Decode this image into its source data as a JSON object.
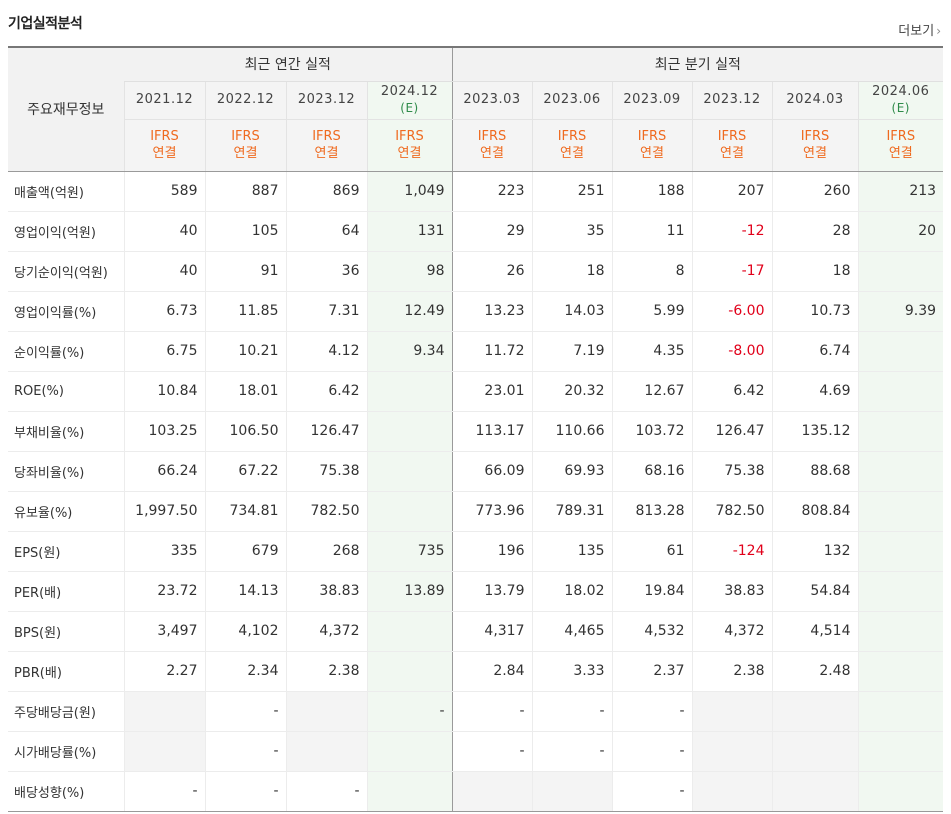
{
  "title": "기업실적분석",
  "more_link": "더보기",
  "header": {
    "corner": "주요재무정보",
    "annual_group": "최근 연간 실적",
    "quarter_group": "최근 분기 실적",
    "periods": [
      {
        "date": "2021.12",
        "est": ""
      },
      {
        "date": "2022.12",
        "est": ""
      },
      {
        "date": "2023.12",
        "est": ""
      },
      {
        "date": "2024.12",
        "est": "(E)"
      },
      {
        "date": "2023.03",
        "est": ""
      },
      {
        "date": "2023.06",
        "est": ""
      },
      {
        "date": "2023.09",
        "est": ""
      },
      {
        "date": "2023.12",
        "est": ""
      },
      {
        "date": "2024.03",
        "est": ""
      },
      {
        "date": "2024.06",
        "est": "(E)"
      }
    ],
    "ifrs_line1": "IFRS",
    "ifrs_line2": "연결"
  },
  "rows": [
    {
      "label": "매출액(억원)",
      "values": [
        "589",
        "887",
        "869",
        "1,049",
        "223",
        "251",
        "188",
        "207",
        "260",
        "213"
      ]
    },
    {
      "label": "영업이익(억원)",
      "values": [
        "40",
        "105",
        "64",
        "131",
        "29",
        "35",
        "11",
        "-12",
        "28",
        "20"
      ]
    },
    {
      "label": "당기순이익(억원)",
      "values": [
        "40",
        "91",
        "36",
        "98",
        "26",
        "18",
        "8",
        "-17",
        "18",
        ""
      ]
    },
    {
      "label": "영업이익률(%)",
      "values": [
        "6.73",
        "11.85",
        "7.31",
        "12.49",
        "13.23",
        "14.03",
        "5.99",
        "-6.00",
        "10.73",
        "9.39"
      ]
    },
    {
      "label": "순이익률(%)",
      "values": [
        "6.75",
        "10.21",
        "4.12",
        "9.34",
        "11.72",
        "7.19",
        "4.35",
        "-8.00",
        "6.74",
        ""
      ]
    },
    {
      "label": "ROE(%)",
      "values": [
        "10.84",
        "18.01",
        "6.42",
        "",
        "23.01",
        "20.32",
        "12.67",
        "6.42",
        "4.69",
        ""
      ]
    },
    {
      "label": "부채비율(%)",
      "values": [
        "103.25",
        "106.50",
        "126.47",
        "",
        "113.17",
        "110.66",
        "103.72",
        "126.47",
        "135.12",
        ""
      ]
    },
    {
      "label": "당좌비율(%)",
      "values": [
        "66.24",
        "67.22",
        "75.38",
        "",
        "66.09",
        "69.93",
        "68.16",
        "75.38",
        "88.68",
        ""
      ]
    },
    {
      "label": "유보율(%)",
      "values": [
        "1,997.50",
        "734.81",
        "782.50",
        "",
        "773.96",
        "789.31",
        "813.28",
        "782.50",
        "808.84",
        ""
      ]
    },
    {
      "label": "EPS(원)",
      "values": [
        "335",
        "679",
        "268",
        "735",
        "196",
        "135",
        "61",
        "-124",
        "132",
        ""
      ]
    },
    {
      "label": "PER(배)",
      "values": [
        "23.72",
        "14.13",
        "38.83",
        "13.89",
        "13.79",
        "18.02",
        "19.84",
        "38.83",
        "54.84",
        ""
      ]
    },
    {
      "label": "BPS(원)",
      "values": [
        "3,497",
        "4,102",
        "4,372",
        "",
        "4,317",
        "4,465",
        "4,532",
        "4,372",
        "4,514",
        ""
      ]
    },
    {
      "label": "PBR(배)",
      "values": [
        "2.27",
        "2.34",
        "2.38",
        "",
        "2.84",
        "3.33",
        "2.37",
        "2.38",
        "2.48",
        ""
      ]
    },
    {
      "label": "주당배당금(원)",
      "values": [
        "",
        "-",
        "",
        "-",
        "-",
        "-",
        "-",
        "",
        "",
        ""
      ]
    },
    {
      "label": "시가배당률(%)",
      "values": [
        "",
        "-",
        "",
        "",
        "-",
        "-",
        "-",
        "",
        "",
        ""
      ]
    },
    {
      "label": "배당성향(%)",
      "values": [
        "-",
        "-",
        "-",
        "",
        "",
        "",
        "-",
        "",
        "",
        ""
      ]
    }
  ],
  "colors": {
    "negative": "#e1001a",
    "ifrs": "#ef6a1f",
    "estimate_bg": "#f1f8f1",
    "estimate_text": "#2f8b4a"
  }
}
